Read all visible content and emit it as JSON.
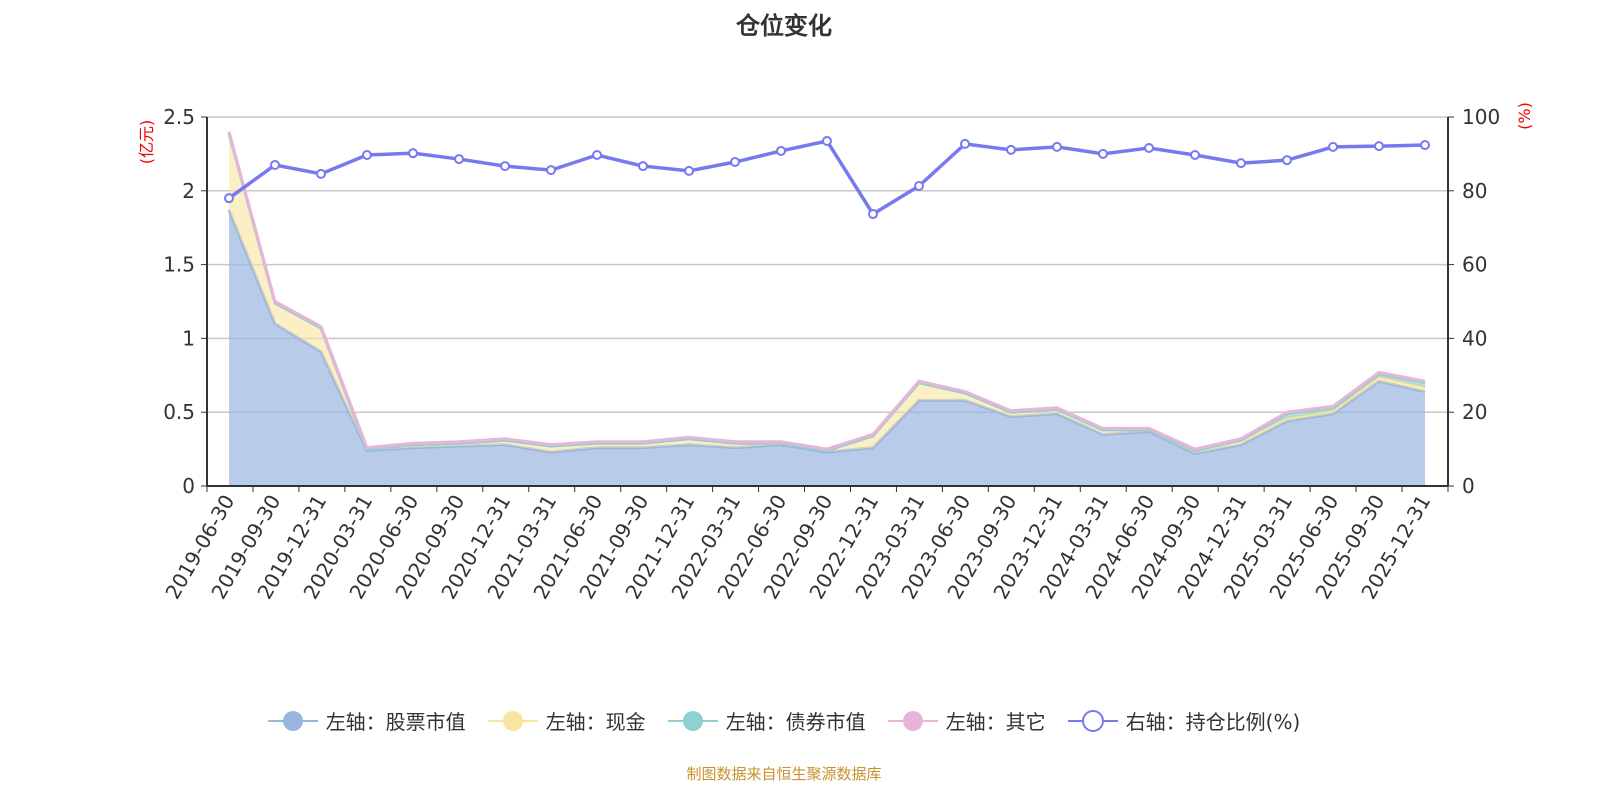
{
  "chart_data": {
    "type": "area",
    "title": "仓位变化",
    "left_unit": "(亿元)",
    "right_unit": "(%)",
    "left_ylim": [
      0,
      2.5
    ],
    "left_ticks": [
      "0",
      "0.5",
      "1",
      "1.5",
      "2",
      "2.5"
    ],
    "right_ylim": [
      0,
      100
    ],
    "right_ticks": [
      "0",
      "20",
      "40",
      "60",
      "80",
      "100"
    ],
    "categories": [
      "2019-06-30",
      "2019-09-30",
      "2019-12-31",
      "2020-03-31",
      "2020-06-30",
      "2020-09-30",
      "2020-12-31",
      "2021-03-31",
      "2021-06-30",
      "2021-09-30",
      "2021-12-31",
      "2022-03-31",
      "2022-06-30",
      "2022-09-30",
      "2022-12-31",
      "2023-03-31",
      "2023-06-30",
      "2023-09-30",
      "2023-12-31",
      "2024-03-31",
      "2024-06-30",
      "2024-09-30",
      "2024-12-31",
      "2025-03-31",
      "2025-06-30",
      "2025-09-30",
      "2025-12-31"
    ],
    "series": [
      {
        "name": "左轴：股票市值",
        "axis": "left",
        "color": "#9ab5e0",
        "values": [
          1.87,
          1.1,
          0.91,
          0.24,
          0.26,
          0.27,
          0.28,
          0.23,
          0.26,
          0.26,
          0.28,
          0.26,
          0.28,
          0.23,
          0.26,
          0.58,
          0.58,
          0.47,
          0.49,
          0.35,
          0.37,
          0.22,
          0.28,
          0.44,
          0.49,
          0.71,
          0.64
        ]
      },
      {
        "name": "左轴：现金",
        "axis": "left",
        "color": "#f8e5a0",
        "values": [
          0.52,
          0.14,
          0.16,
          0.01,
          0.02,
          0.02,
          0.03,
          0.04,
          0.03,
          0.03,
          0.04,
          0.03,
          0.01,
          0.01,
          0.08,
          0.12,
          0.05,
          0.03,
          0.03,
          0.03,
          0.01,
          0.02,
          0.03,
          0.02,
          0.02,
          0.03,
          0.03
        ]
      },
      {
        "name": "左轴：债券市值",
        "axis": "left",
        "color": "#8fd0d0",
        "values": [
          0,
          0,
          0,
          0,
          0,
          0,
          0,
          0,
          0,
          0,
          0,
          0,
          0,
          0,
          0,
          0,
          0,
          0,
          0,
          0,
          0,
          0,
          0,
          0.03,
          0.02,
          0.02,
          0.03
        ]
      },
      {
        "name": "左轴：其它",
        "axis": "left",
        "color": "#e8b5d8",
        "values": [
          0.01,
          0.01,
          0.01,
          0.01,
          0.01,
          0.01,
          0.01,
          0.01,
          0.01,
          0.01,
          0.01,
          0.01,
          0.01,
          0.01,
          0.01,
          0.01,
          0.01,
          0.01,
          0.01,
          0.01,
          0.01,
          0.01,
          0.01,
          0.01,
          0.01,
          0.01,
          0.01
        ]
      },
      {
        "name": "右轴：持仓比例(%)",
        "axis": "right",
        "color": "#7779f0",
        "values": [
          78.0,
          87.0,
          84.6,
          89.7,
          90.2,
          88.6,
          86.7,
          85.6,
          89.7,
          86.7,
          85.4,
          87.8,
          90.8,
          93.5,
          73.7,
          81.3,
          92.7,
          91.1,
          91.9,
          90.0,
          91.6,
          89.7,
          87.5,
          88.3,
          91.9,
          92.1,
          92.4
        ]
      }
    ],
    "legend_position": "bottom",
    "grid": true
  },
  "footer": "制图数据来自恒生聚源数据库"
}
